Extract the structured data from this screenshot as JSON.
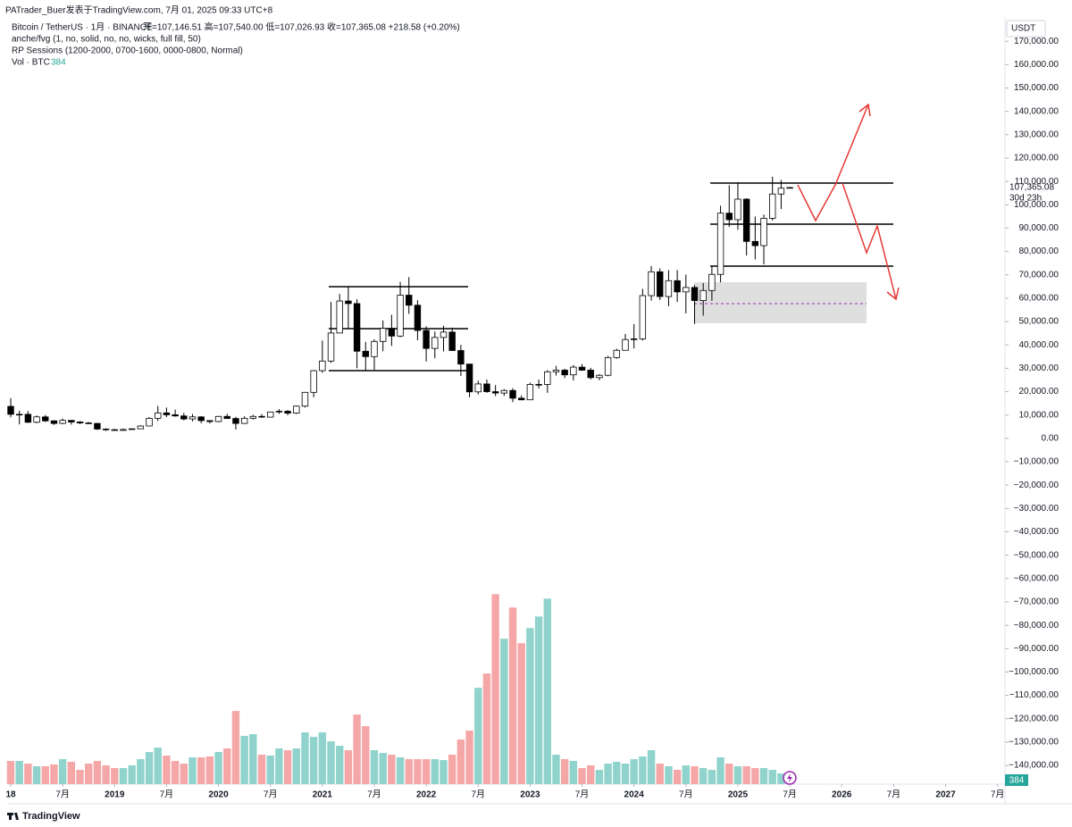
{
  "header": {
    "attribution": "PATrader_Buer发表于TradingView.com, 7月 01, 2025 09:33 UTC+8",
    "symbol": "Bitcoin / TetherUS · 1月 · BINANCE",
    "ohlc": "开=107,146.51 高=107,540.00 低=107,026.93 收=107,365.08 +218.58 (+0.20%)",
    "indicator1": "anche/fvg (1, no, solid, no, no, wicks, full fill, 50)",
    "indicator2": "RP Sessions (1200-2000, 0700-1600, 0000-0800, Normal)",
    "volume_label": "Vol · BTC",
    "volume_value": "384"
  },
  "right_panel": {
    "currency": "USDT",
    "last_price": "107,365.08",
    "countdown": "30d 23h",
    "volume_badge": "384"
  },
  "footer": {
    "brand": "TradingView"
  },
  "chart_data": {
    "type": "candlestick",
    "candle_colors": {
      "up": "#ffffff",
      "down": "#000000",
      "outline": "#000000"
    },
    "volume_colors": {
      "up": "#8fd3cc",
      "down": "#f5a6a6"
    },
    "x": [
      "2018-01",
      "2018-02",
      "2018-03",
      "2018-04",
      "2018-05",
      "2018-06",
      "2018-07",
      "2018-08",
      "2018-09",
      "2018-10",
      "2018-11",
      "2018-12",
      "2019-01",
      "2019-02",
      "2019-03",
      "2019-04",
      "2019-05",
      "2019-06",
      "2019-07",
      "2019-08",
      "2019-09",
      "2019-10",
      "2019-11",
      "2019-12",
      "2020-01",
      "2020-02",
      "2020-03",
      "2020-04",
      "2020-05",
      "2020-06",
      "2020-07",
      "2020-08",
      "2020-09",
      "2020-10",
      "2020-11",
      "2020-12",
      "2021-01",
      "2021-02",
      "2021-03",
      "2021-04",
      "2021-05",
      "2021-06",
      "2021-07",
      "2021-08",
      "2021-09",
      "2021-10",
      "2021-11",
      "2021-12",
      "2022-01",
      "2022-02",
      "2022-03",
      "2022-04",
      "2022-05",
      "2022-06",
      "2022-07",
      "2022-08",
      "2022-09",
      "2022-10",
      "2022-11",
      "2022-12",
      "2023-01",
      "2023-02",
      "2023-03",
      "2023-04",
      "2023-05",
      "2023-06",
      "2023-07",
      "2023-08",
      "2023-09",
      "2023-10",
      "2023-11",
      "2023-12",
      "2024-01",
      "2024-02",
      "2024-03",
      "2024-04",
      "2024-05",
      "2024-06",
      "2024-07",
      "2024-08",
      "2024-09",
      "2024-10",
      "2024-11",
      "2024-12",
      "2025-01",
      "2025-02",
      "2025-03",
      "2025-04",
      "2025-05",
      "2025-06",
      "2025-07"
    ],
    "open": [
      13700,
      10300,
      10300,
      6900,
      9200,
      7500,
      6400,
      7700,
      7000,
      6600,
      6400,
      4000,
      3700,
      3400,
      3800,
      4100,
      5300,
      8600,
      10900,
      10100,
      9600,
      8300,
      9200,
      7600,
      7200,
      9400,
      8500,
      6400,
      8600,
      9400,
      9100,
      11300,
      11600,
      10800,
      13800,
      19700,
      29000,
      33100,
      45100,
      58800,
      57700,
      37300,
      35000,
      41500,
      47100,
      43800,
      61300,
      57000,
      46200,
      38500,
      43200,
      45500,
      37600,
      31800,
      19900,
      23300,
      20000,
      19400,
      20500,
      17200,
      16500,
      23100,
      23100,
      28500,
      29200,
      27200,
      30500,
      29200,
      26000,
      27000,
      34600,
      37700,
      42300,
      42600,
      61100,
      71300,
      60700,
      67500,
      62700,
      64600,
      59000,
      63300,
      70200,
      96400,
      93600,
      102400,
      84300,
      82500,
      94200,
      104600,
      107146.51
    ],
    "high": [
      17200,
      11800,
      11700,
      9800,
      10000,
      7800,
      8500,
      7800,
      7400,
      7000,
      6600,
      4300,
      4100,
      4200,
      4100,
      5600,
      9100,
      13900,
      13200,
      12300,
      10900,
      10400,
      9500,
      7700,
      9600,
      10500,
      9200,
      9500,
      10100,
      10400,
      11400,
      12500,
      12100,
      14100,
      19900,
      29300,
      41900,
      58400,
      61800,
      64900,
      59600,
      41300,
      42400,
      50500,
      52900,
      67000,
      69000,
      59100,
      48000,
      45800,
      48200,
      47400,
      40000,
      31900,
      24700,
      25200,
      22800,
      21100,
      21500,
      18400,
      23900,
      25200,
      29200,
      31000,
      29800,
      31400,
      31800,
      30200,
      27500,
      35300,
      38400,
      44700,
      48900,
      64000,
      73800,
      72800,
      72000,
      72000,
      70100,
      65600,
      66500,
      73600,
      99600,
      108400,
      109600,
      102800,
      95000,
      95800,
      112000,
      110600,
      107540
    ],
    "low": [
      9000,
      6000,
      6600,
      6400,
      7000,
      5800,
      6100,
      5900,
      6100,
      6200,
      3600,
      3200,
      3400,
      3400,
      3700,
      4000,
      5300,
      7400,
      9100,
      9300,
      7700,
      7300,
      6500,
      6400,
      6900,
      8400,
      3800,
      6200,
      8100,
      8800,
      8900,
      10500,
      9900,
      10400,
      13200,
      17600,
      28100,
      32300,
      45000,
      47000,
      30000,
      28800,
      29300,
      37300,
      39600,
      43300,
      53300,
      42000,
      32900,
      34300,
      37200,
      37600,
      26700,
      17600,
      18800,
      19500,
      18100,
      18200,
      15500,
      16300,
      16500,
      21400,
      19500,
      26900,
      25800,
      24800,
      28900,
      25200,
      24900,
      26600,
      34100,
      37600,
      38500,
      41900,
      59000,
      59200,
      56600,
      58400,
      53500,
      49000,
      52500,
      58900,
      66800,
      90500,
      89300,
      78300,
      76600,
      74500,
      93300,
      98200,
      107026.93
    ],
    "close": [
      10300,
      10300,
      6900,
      9200,
      7500,
      6400,
      7700,
      7000,
      6600,
      6300,
      4000,
      3700,
      3400,
      3800,
      4100,
      5300,
      8600,
      10900,
      10100,
      9600,
      8300,
      9200,
      7600,
      7200,
      9400,
      8500,
      6400,
      8600,
      9400,
      9100,
      11300,
      11600,
      10800,
      13800,
      19700,
      29000,
      33100,
      45100,
      58800,
      57700,
      37300,
      35000,
      41500,
      47100,
      43800,
      61300,
      57000,
      46200,
      38500,
      43200,
      45500,
      37600,
      31800,
      19900,
      23300,
      20000,
      19400,
      20500,
      17200,
      16500,
      23100,
      23100,
      28500,
      29200,
      27200,
      30500,
      29200,
      26000,
      27000,
      34600,
      37700,
      42300,
      42600,
      61100,
      71300,
      60700,
      67500,
      62700,
      64600,
      59000,
      63300,
      70200,
      96400,
      93600,
      102400,
      84300,
      82500,
      94200,
      104600,
      107100,
      107365.08
    ],
    "volume": [
      780000,
      780000,
      690000,
      600000,
      600000,
      660000,
      840000,
      750000,
      480000,
      690000,
      780000,
      630000,
      540000,
      540000,
      630000,
      840000,
      1080000,
      1230000,
      960000,
      780000,
      690000,
      900000,
      900000,
      930000,
      1080000,
      1200000,
      2460000,
      1620000,
      1680000,
      990000,
      960000,
      1200000,
      1140000,
      1200000,
      1740000,
      1590000,
      1740000,
      1440000,
      1290000,
      1140000,
      2340000,
      1950000,
      1140000,
      1050000,
      990000,
      900000,
      840000,
      840000,
      840000,
      840000,
      810000,
      990000,
      1500000,
      1800000,
      3240000,
      3720000,
      6390000,
      4890000,
      5940000,
      4740000,
      5250000,
      5640000,
      6240000,
      990000,
      840000,
      780000,
      540000,
      630000,
      480000,
      690000,
      750000,
      690000,
      840000,
      930000,
      1140000,
      690000,
      600000,
      480000,
      630000,
      600000,
      540000,
      480000,
      900000,
      690000,
      600000,
      600000,
      540000,
      540000,
      480000,
      360000,
      384
    ],
    "volume_ylim": [
      0,
      7000000
    ],
    "ylim": [
      -148000,
      180000
    ],
    "yticks": [
      {
        "value": 170000,
        "label": "170,000.00"
      },
      {
        "value": 160000,
        "label": "160,000.00"
      },
      {
        "value": 150000,
        "label": "150,000.00"
      },
      {
        "value": 140000,
        "label": "140,000.00"
      },
      {
        "value": 130000,
        "label": "130,000.00"
      },
      {
        "value": 120000,
        "label": "120,000.00"
      },
      {
        "value": 110000,
        "label": "110,000.00"
      },
      {
        "value": 100000,
        "label": "100,000.00"
      },
      {
        "value": 90000,
        "label": "90,000.00"
      },
      {
        "value": 80000,
        "label": "80,000.00"
      },
      {
        "value": 70000,
        "label": "70,000.00"
      },
      {
        "value": 60000,
        "label": "60,000.00"
      },
      {
        "value": 50000,
        "label": "50,000.00"
      },
      {
        "value": 40000,
        "label": "40,000.00"
      },
      {
        "value": 30000,
        "label": "30,000.00"
      },
      {
        "value": 20000,
        "label": "20,000.00"
      },
      {
        "value": 10000,
        "label": "10,000.00"
      },
      {
        "value": 0,
        "label": "0.00"
      },
      {
        "value": -10000,
        "label": "−10,000.00"
      },
      {
        "value": -20000,
        "label": "−20,000.00"
      },
      {
        "value": -30000,
        "label": "−30,000.00"
      },
      {
        "value": -40000,
        "label": "−40,000.00"
      },
      {
        "value": -50000,
        "label": "−50,000.00"
      },
      {
        "value": -60000,
        "label": "−60,000.00"
      },
      {
        "value": -70000,
        "label": "−70,000.00"
      },
      {
        "value": -80000,
        "label": "−80,000.00"
      },
      {
        "value": -90000,
        "label": "−90,000.00"
      },
      {
        "value": -100000,
        "label": "−100,000.00"
      },
      {
        "value": -110000,
        "label": "−110,000.00"
      },
      {
        "value": -120000,
        "label": "−120,000.00"
      },
      {
        "value": -130000,
        "label": "−130,000.00"
      },
      {
        "value": -140000,
        "label": "−140,000.00"
      }
    ],
    "xticks": [
      {
        "value": "2018-01",
        "label": "18"
      },
      {
        "value": "2018-07",
        "label": "7月"
      },
      {
        "value": "2019-01",
        "label": "2019"
      },
      {
        "value": "2019-07",
        "label": "7月"
      },
      {
        "value": "2020-01",
        "label": "2020"
      },
      {
        "value": "2020-07",
        "label": "7月"
      },
      {
        "value": "2021-01",
        "label": "2021"
      },
      {
        "value": "2021-07",
        "label": "7月"
      },
      {
        "value": "2022-01",
        "label": "2022"
      },
      {
        "value": "2022-07",
        "label": "7月"
      },
      {
        "value": "2023-01",
        "label": "2023"
      },
      {
        "value": "2023-07",
        "label": "7月"
      },
      {
        "value": "2024-01",
        "label": "2024"
      },
      {
        "value": "2024-07",
        "label": "7月"
      },
      {
        "value": "2025-01",
        "label": "2025"
      },
      {
        "value": "2025-07",
        "label": "7月"
      },
      {
        "value": "2026-01",
        "label": "2026"
      },
      {
        "value": "2026-07",
        "label": "7月"
      },
      {
        "value": "2027-01",
        "label": "2027"
      },
      {
        "value": "2027-07",
        "label": "7月"
      }
    ],
    "grid": false
  }
}
